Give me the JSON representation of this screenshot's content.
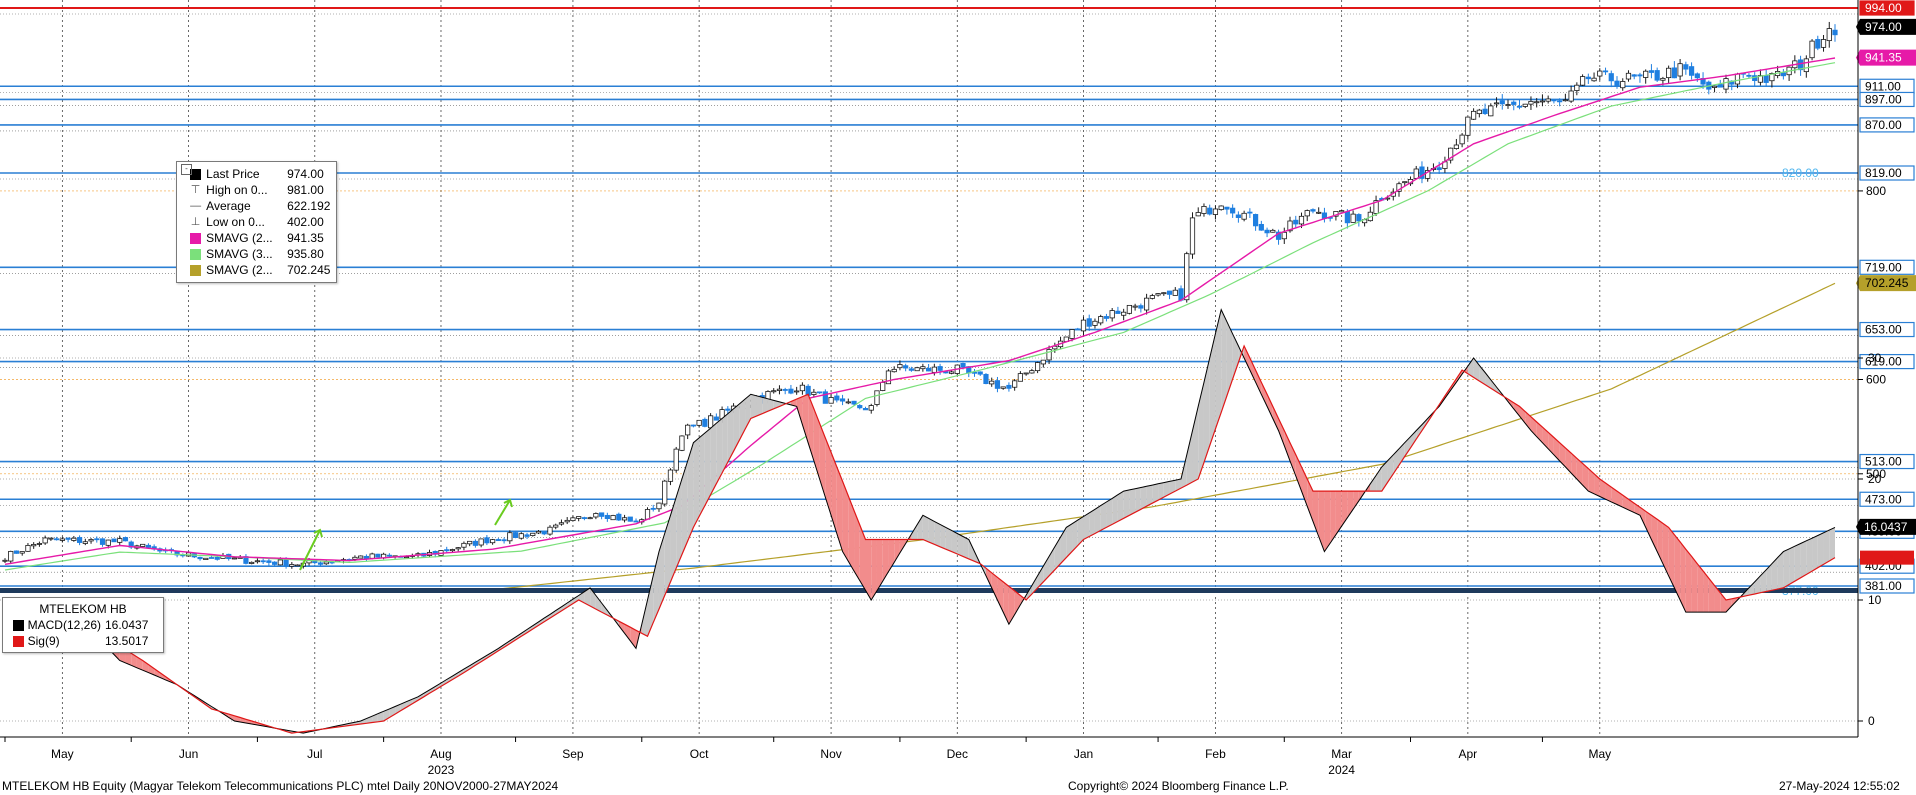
{
  "colors": {
    "up_candle": "#1a1a1a",
    "down_candle": "#1f7fe0",
    "sma20": "#e61aa8",
    "sma30": "#7be07b",
    "sma200": "#b5a02a",
    "h_line": "#2a7fd4",
    "red_line": "#e01818",
    "macd": "#000000",
    "signal": "#e01818"
  },
  "main_legend": {
    "rows": [
      {
        "label": "Last Price",
        "value": "974.00",
        "icon": "black-square"
      },
      {
        "label": "High on 0...",
        "value": "981.00",
        "icon": "high-marker-icon"
      },
      {
        "label": "Average",
        "value": "622.192",
        "icon": "average-marker-icon"
      },
      {
        "label": "Low on 0...",
        "value": "402.00",
        "icon": "low-marker-icon"
      },
      {
        "label": "SMAVG (2...",
        "value": "941.35",
        "icon": "magenta-square"
      },
      {
        "label": "SMAVG (3...",
        "value": "935.80",
        "icon": "lightgreen-square"
      },
      {
        "label": "SMAVG (2...",
        "value": "702.245",
        "icon": "olive-square"
      }
    ]
  },
  "macd_legend": {
    "title": "MTELEKOM HB",
    "rows": [
      {
        "label": "MACD(12,26)",
        "value": "16.0437"
      },
      {
        "label": "Sig(9)",
        "value": "13.5017"
      }
    ]
  },
  "footer": {
    "left": "MTELEKOM HB Equity (Magyar Telekom Telecommunications PLC) mtel  Daily 20NOV2000-27MAY2024",
    "center": "Copyright© 2024 Bloomberg Finance L.P.",
    "right": "27-May-2024 12:55:02"
  },
  "chart_data": [
    {
      "type": "candlestick",
      "ylim": [
        375,
        1000
      ],
      "y_ticks": [
        500,
        600,
        800
      ],
      "h_levels": [
        {
          "value": 994.0,
          "label": "994.00",
          "style": "red"
        },
        {
          "value": 911.0,
          "label": "911.00",
          "style": "blue"
        },
        {
          "value": 897.0,
          "label": "897.00",
          "style": "blue"
        },
        {
          "value": 870.0,
          "label": "870.00",
          "style": "blue"
        },
        {
          "value": 819.0,
          "label": "819.00",
          "style": "blue"
        },
        {
          "value": 719.0,
          "label": "719.00",
          "style": "blue"
        },
        {
          "value": 653.0,
          "label": "653.00",
          "style": "blue"
        },
        {
          "value": 619.0,
          "label": "619.00",
          "style": "blue"
        },
        {
          "value": 513.0,
          "label": "513.00",
          "style": "blue"
        },
        {
          "value": 473.0,
          "label": "473.00",
          "style": "blue"
        },
        {
          "value": 439.0,
          "label": "439.00",
          "style": "blue"
        },
        {
          "value": 402.0,
          "label": "402.00",
          "style": "blue"
        },
        {
          "value": 381.0,
          "label": "381.00",
          "style": "blue"
        }
      ],
      "value_tags": [
        {
          "value": 974.0,
          "label": "974.00",
          "bg": "#000000",
          "fg": "#ffffff"
        },
        {
          "value": 941.35,
          "label": "941.35",
          "bg": "#e61aa8",
          "fg": "#ffffff"
        },
        {
          "value": 702.245,
          "label": "702.245",
          "bg": "#b5a02a",
          "fg": "#000000"
        }
      ],
      "annotations": [
        {
          "value": 820.0,
          "label": "820.00"
        },
        {
          "value": 377.0,
          "label": "377.00"
        }
      ],
      "anchors": [
        {
          "i": 0,
          "v": 412
        },
        {
          "i": 7,
          "v": 430
        },
        {
          "i": 20,
          "v": 428
        },
        {
          "i": 28,
          "v": 416
        },
        {
          "i": 40,
          "v": 409
        },
        {
          "i": 52,
          "v": 404
        },
        {
          "i": 62,
          "v": 412
        },
        {
          "i": 72,
          "v": 412
        },
        {
          "i": 84,
          "v": 430
        },
        {
          "i": 95,
          "v": 440
        },
        {
          "i": 103,
          "v": 460
        },
        {
          "i": 110,
          "v": 448
        },
        {
          "i": 114,
          "v": 470
        },
        {
          "i": 118,
          "v": 545
        },
        {
          "i": 124,
          "v": 560
        },
        {
          "i": 130,
          "v": 580
        },
        {
          "i": 138,
          "v": 592
        },
        {
          "i": 146,
          "v": 572
        },
        {
          "i": 151,
          "v": 570
        },
        {
          "i": 154,
          "v": 612
        },
        {
          "i": 166,
          "v": 610
        },
        {
          "i": 175,
          "v": 590
        },
        {
          "i": 182,
          "v": 630
        },
        {
          "i": 188,
          "v": 660
        },
        {
          "i": 200,
          "v": 685
        },
        {
          "i": 205,
          "v": 690
        },
        {
          "i": 207,
          "v": 770
        },
        {
          "i": 212,
          "v": 790
        },
        {
          "i": 222,
          "v": 752
        },
        {
          "i": 228,
          "v": 780
        },
        {
          "i": 236,
          "v": 768
        },
        {
          "i": 240,
          "v": 795
        },
        {
          "i": 250,
          "v": 830
        },
        {
          "i": 256,
          "v": 880
        },
        {
          "i": 266,
          "v": 895
        },
        {
          "i": 272,
          "v": 893
        },
        {
          "i": 276,
          "v": 920
        },
        {
          "i": 285,
          "v": 918
        },
        {
          "i": 292,
          "v": 928
        },
        {
          "i": 298,
          "v": 905
        },
        {
          "i": 303,
          "v": 925
        },
        {
          "i": 308,
          "v": 918
        },
        {
          "i": 313,
          "v": 935
        },
        {
          "i": 316,
          "v": 960
        },
        {
          "i": 318,
          "v": 974
        }
      ],
      "sma20_anchors": [
        {
          "i": 0,
          "v": 404
        },
        {
          "i": 20,
          "v": 424
        },
        {
          "i": 40,
          "v": 412
        },
        {
          "i": 60,
          "v": 408
        },
        {
          "i": 85,
          "v": 420
        },
        {
          "i": 110,
          "v": 447
        },
        {
          "i": 118,
          "v": 466
        },
        {
          "i": 130,
          "v": 530
        },
        {
          "i": 140,
          "v": 580
        },
        {
          "i": 155,
          "v": 600
        },
        {
          "i": 175,
          "v": 620
        },
        {
          "i": 190,
          "v": 650
        },
        {
          "i": 205,
          "v": 684
        },
        {
          "i": 222,
          "v": 755
        },
        {
          "i": 240,
          "v": 790
        },
        {
          "i": 256,
          "v": 850
        },
        {
          "i": 270,
          "v": 880
        },
        {
          "i": 285,
          "v": 910
        },
        {
          "i": 300,
          "v": 922
        },
        {
          "i": 319,
          "v": 941
        }
      ],
      "sma30_anchors": [
        {
          "i": 0,
          "v": 398
        },
        {
          "i": 20,
          "v": 417
        },
        {
          "i": 40,
          "v": 412
        },
        {
          "i": 60,
          "v": 406
        },
        {
          "i": 90,
          "v": 418
        },
        {
          "i": 115,
          "v": 448
        },
        {
          "i": 132,
          "v": 510
        },
        {
          "i": 150,
          "v": 580
        },
        {
          "i": 170,
          "v": 610
        },
        {
          "i": 195,
          "v": 650
        },
        {
          "i": 210,
          "v": 690
        },
        {
          "i": 228,
          "v": 745
        },
        {
          "i": 248,
          "v": 800
        },
        {
          "i": 262,
          "v": 850
        },
        {
          "i": 280,
          "v": 890
        },
        {
          "i": 300,
          "v": 915
        },
        {
          "i": 319,
          "v": 936
        }
      ],
      "sma200_anchors": [
        {
          "i": 85,
          "v": 377
        },
        {
          "i": 120,
          "v": 400
        },
        {
          "i": 160,
          "v": 430
        },
        {
          "i": 200,
          "v": 465
        },
        {
          "i": 240,
          "v": 510
        },
        {
          "i": 280,
          "v": 590
        },
        {
          "i": 319,
          "v": 702
        }
      ]
    },
    {
      "type": "line",
      "ylim": [
        -3,
        36
      ],
      "y_ticks": [
        0,
        10,
        20,
        30
      ],
      "series": [
        {
          "name": "MACD(12,26)",
          "last": 16.0437
        },
        {
          "name": "Sig(9)",
          "last": 13.5017
        }
      ],
      "macd_anchors": [
        {
          "i": 0,
          "v": 6
        },
        {
          "i": 12,
          "v": 9
        },
        {
          "i": 20,
          "v": 5
        },
        {
          "i": 30,
          "v": 3
        },
        {
          "i": 40,
          "v": 0
        },
        {
          "i": 52,
          "v": -1
        },
        {
          "i": 62,
          "v": 0
        },
        {
          "i": 72,
          "v": 2
        },
        {
          "i": 86,
          "v": 6
        },
        {
          "i": 102,
          "v": 11
        },
        {
          "i": 110,
          "v": 6
        },
        {
          "i": 114,
          "v": 14
        },
        {
          "i": 120,
          "v": 23
        },
        {
          "i": 130,
          "v": 27
        },
        {
          "i": 138,
          "v": 26
        },
        {
          "i": 146,
          "v": 14
        },
        {
          "i": 151,
          "v": 10
        },
        {
          "i": 160,
          "v": 17
        },
        {
          "i": 168,
          "v": 15
        },
        {
          "i": 175,
          "v": 8
        },
        {
          "i": 185,
          "v": 16
        },
        {
          "i": 195,
          "v": 19
        },
        {
          "i": 205,
          "v": 20
        },
        {
          "i": 212,
          "v": 34
        },
        {
          "i": 222,
          "v": 24
        },
        {
          "i": 230,
          "v": 14
        },
        {
          "i": 240,
          "v": 21
        },
        {
          "i": 250,
          "v": 26
        },
        {
          "i": 256,
          "v": 30
        },
        {
          "i": 266,
          "v": 24
        },
        {
          "i": 276,
          "v": 19
        },
        {
          "i": 285,
          "v": 17
        },
        {
          "i": 293,
          "v": 9
        },
        {
          "i": 300,
          "v": 9
        },
        {
          "i": 310,
          "v": 14
        },
        {
          "i": 319,
          "v": 16
        }
      ],
      "signal_anchors": [
        {
          "i": 0,
          "v": 7
        },
        {
          "i": 14,
          "v": 8
        },
        {
          "i": 24,
          "v": 5
        },
        {
          "i": 36,
          "v": 1
        },
        {
          "i": 50,
          "v": -1
        },
        {
          "i": 66,
          "v": 0
        },
        {
          "i": 80,
          "v": 4
        },
        {
          "i": 100,
          "v": 10
        },
        {
          "i": 112,
          "v": 7
        },
        {
          "i": 120,
          "v": 16
        },
        {
          "i": 130,
          "v": 25
        },
        {
          "i": 140,
          "v": 27
        },
        {
          "i": 150,
          "v": 15
        },
        {
          "i": 160,
          "v": 15
        },
        {
          "i": 170,
          "v": 13
        },
        {
          "i": 178,
          "v": 10
        },
        {
          "i": 188,
          "v": 15
        },
        {
          "i": 200,
          "v": 18
        },
        {
          "i": 208,
          "v": 20
        },
        {
          "i": 216,
          "v": 31
        },
        {
          "i": 228,
          "v": 19
        },
        {
          "i": 240,
          "v": 19
        },
        {
          "i": 254,
          "v": 29
        },
        {
          "i": 264,
          "v": 26
        },
        {
          "i": 278,
          "v": 20
        },
        {
          "i": 290,
          "v": 16
        },
        {
          "i": 300,
          "v": 10
        },
        {
          "i": 310,
          "v": 11
        },
        {
          "i": 319,
          "v": 13.5
        }
      ]
    }
  ],
  "x_axis": {
    "months": [
      {
        "label": "May",
        "i": 0,
        "year": ""
      },
      {
        "label": "Jun",
        "i": 22,
        "year": ""
      },
      {
        "label": "Jul",
        "i": 44,
        "year": ""
      },
      {
        "label": "Aug",
        "i": 66,
        "year": "2023"
      },
      {
        "label": "Sep",
        "i": 89,
        "year": ""
      },
      {
        "label": "Oct",
        "i": 111,
        "year": ""
      },
      {
        "label": "Nov",
        "i": 134,
        "year": ""
      },
      {
        "label": "Dec",
        "i": 156,
        "year": ""
      },
      {
        "label": "Jan",
        "i": 178,
        "year": ""
      },
      {
        "label": "Feb",
        "i": 201,
        "year": ""
      },
      {
        "label": "Mar",
        "i": 223,
        "year": "2024"
      },
      {
        "label": "Apr",
        "i": 245,
        "year": ""
      },
      {
        "label": "May",
        "i": 268,
        "year": ""
      }
    ]
  }
}
